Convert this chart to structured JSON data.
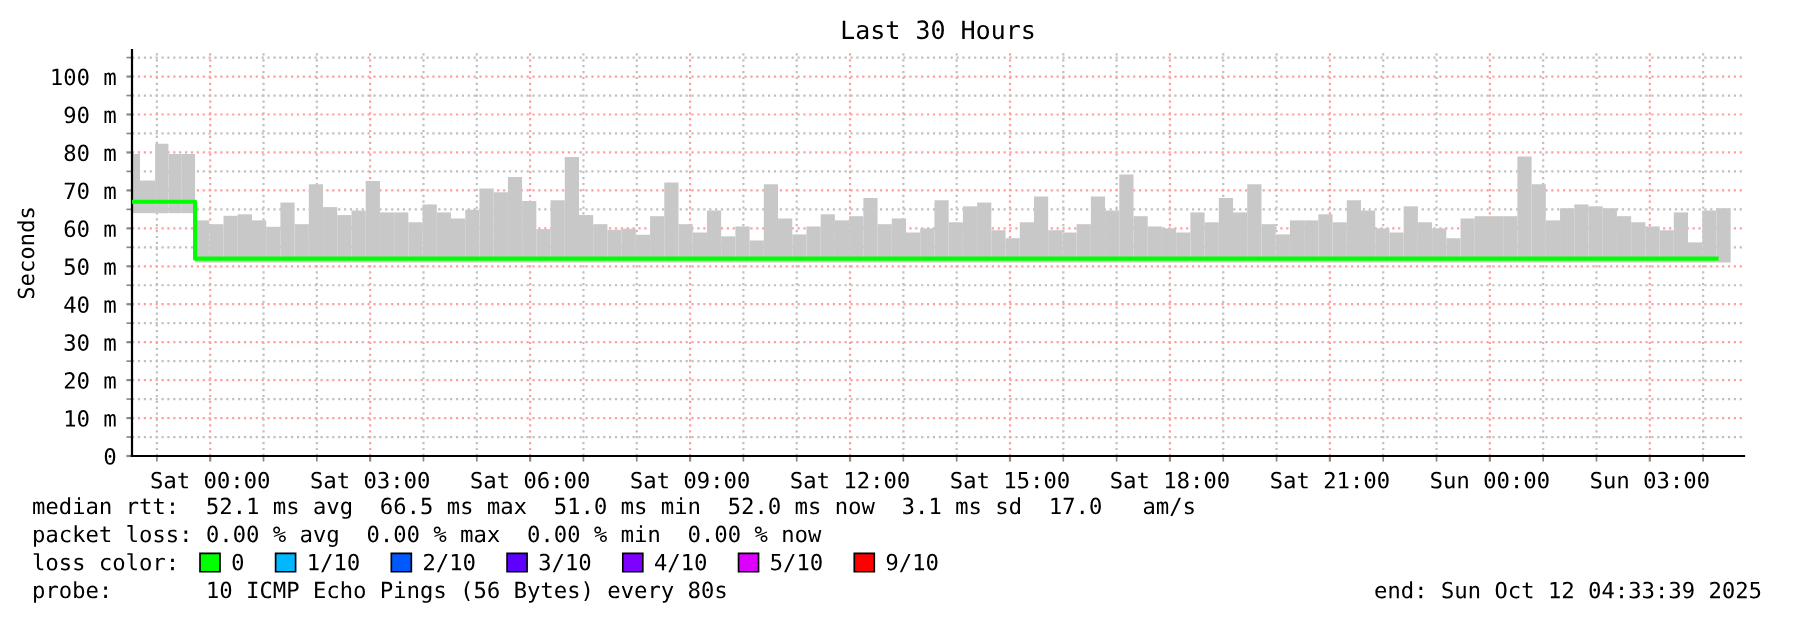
{
  "chart_data": {
    "type": "bar",
    "title": "Last 30 Hours",
    "ylabel": "Seconds",
    "x": [
      "2025-10-10T22:32",
      "2025-10-10T22:41",
      "2025-10-10T22:58",
      "2025-10-10T23:13",
      "2025-10-10T23:28",
      "2025-10-10T23:43",
      "2025-10-10T23:59",
      "2025-10-11T00:15",
      "2025-10-11T00:31",
      "2025-10-11T00:47",
      "2025-10-11T01:03",
      "2025-10-11T01:19",
      "2025-10-11T01:35",
      "2025-10-11T01:51",
      "2025-10-11T02:07",
      "2025-10-11T02:23",
      "2025-10-11T02:39",
      "2025-10-11T02:55",
      "2025-10-11T03:11",
      "2025-10-11T03:27",
      "2025-10-11T03:43",
      "2025-10-11T03:59",
      "2025-10-11T04:15",
      "2025-10-11T04:31",
      "2025-10-11T04:47",
      "2025-10-11T05:03",
      "2025-10-11T05:19",
      "2025-10-11T05:35",
      "2025-10-11T05:51",
      "2025-10-11T06:07",
      "2025-10-11T06:23",
      "2025-10-11T06:39",
      "2025-10-11T06:55",
      "2025-10-11T07:11",
      "2025-10-11T07:27",
      "2025-10-11T07:43",
      "2025-10-11T07:59",
      "2025-10-11T08:15",
      "2025-10-11T08:31",
      "2025-10-11T08:47",
      "2025-10-11T09:03",
      "2025-10-11T09:19",
      "2025-10-11T09:35",
      "2025-10-11T09:51",
      "2025-10-11T10:07",
      "2025-10-11T10:23",
      "2025-10-11T10:39",
      "2025-10-11T10:55",
      "2025-10-11T11:11",
      "2025-10-11T11:27",
      "2025-10-11T11:43",
      "2025-10-11T11:59",
      "2025-10-11T12:15",
      "2025-10-11T12:31",
      "2025-10-11T12:47",
      "2025-10-11T13:03",
      "2025-10-11T13:19",
      "2025-10-11T13:35",
      "2025-10-11T13:51",
      "2025-10-11T14:07",
      "2025-10-11T14:23",
      "2025-10-11T14:39",
      "2025-10-11T14:55",
      "2025-10-11T15:11",
      "2025-10-11T15:27",
      "2025-10-11T15:43",
      "2025-10-11T15:59",
      "2025-10-11T16:15",
      "2025-10-11T16:31",
      "2025-10-11T16:47",
      "2025-10-11T17:03",
      "2025-10-11T17:19",
      "2025-10-11T17:35",
      "2025-10-11T17:51",
      "2025-10-11T18:07",
      "2025-10-11T18:23",
      "2025-10-11T18:39",
      "2025-10-11T18:55",
      "2025-10-11T19:11",
      "2025-10-11T19:27",
      "2025-10-11T19:43",
      "2025-10-11T19:59",
      "2025-10-11T20:15",
      "2025-10-11T20:31",
      "2025-10-11T20:47",
      "2025-10-11T21:03",
      "2025-10-11T21:19",
      "2025-10-11T21:35",
      "2025-10-11T21:51",
      "2025-10-11T22:07",
      "2025-10-11T22:23",
      "2025-10-11T22:39",
      "2025-10-11T22:55",
      "2025-10-11T23:11",
      "2025-10-11T23:27",
      "2025-10-11T23:43",
      "2025-10-11T23:59",
      "2025-10-12T00:15",
      "2025-10-12T00:31",
      "2025-10-12T00:47",
      "2025-10-12T01:03",
      "2025-10-12T01:19",
      "2025-10-12T01:35",
      "2025-10-12T01:51",
      "2025-10-12T02:07",
      "2025-10-12T02:23",
      "2025-10-12T02:39",
      "2025-10-12T02:55",
      "2025-10-12T03:11",
      "2025-10-12T03:27",
      "2025-10-12T03:43",
      "2025-10-12T03:59",
      "2025-10-12T04:15"
    ],
    "series": [
      {
        "color": "#c8c8c8",
        "base": [
          64,
          64,
          64,
          64,
          64,
          51,
          51,
          51,
          51,
          51,
          51,
          51,
          51,
          51,
          51,
          51,
          51,
          51,
          51,
          51,
          51,
          51,
          51,
          51,
          51,
          51,
          51,
          51,
          51,
          51,
          51,
          51,
          51,
          51,
          51,
          51,
          51,
          51,
          51,
          51,
          51,
          51,
          51,
          51,
          51,
          51,
          51,
          51,
          51,
          51,
          51,
          51,
          51,
          51,
          51,
          51,
          51,
          51,
          51,
          51,
          51,
          51,
          51,
          51,
          51,
          51,
          51,
          51,
          51,
          51,
          51,
          51,
          51,
          51,
          51,
          51,
          51,
          51,
          51,
          51,
          51,
          51,
          51,
          51,
          51,
          51,
          51,
          51,
          51,
          51,
          51,
          51,
          51,
          51,
          51,
          51,
          51,
          51,
          51,
          51,
          51,
          51,
          51,
          51,
          51,
          51,
          51,
          51,
          51,
          51,
          51,
          51,
          51
        ],
        "values": [
          15.6,
          8.6,
          18.3,
          15.6,
          15.6,
          11.1,
          10.1,
          12.3,
          12.7,
          11.1,
          9.4,
          15.8,
          10.1,
          20.6,
          14.6,
          12.5,
          13.7,
          21.5,
          13.2,
          13.2,
          10.6,
          15.3,
          13.2,
          11.6,
          13.9,
          19.5,
          18.5,
          22.5,
          16.2,
          8.8,
          16.4,
          27.8,
          12.5,
          10.1,
          8.6,
          8.9,
          7.3,
          12.2,
          21.1,
          10.1,
          7.9,
          13.7,
          6.9,
          9.5,
          5.8,
          20.6,
          11.6,
          7.4,
          9.5,
          12.7,
          11.1,
          12.2,
          17.0,
          10.1,
          11.6,
          7.9,
          9.0,
          16.4,
          10.6,
          14.8,
          15.8,
          8.5,
          6.4,
          10.6,
          17.4,
          8.5,
          7.9,
          10.1,
          17.4,
          13.7,
          23.2,
          12.2,
          9.5,
          9.0,
          7.9,
          13.2,
          10.6,
          17.0,
          13.2,
          20.6,
          10.1,
          7.4,
          11.1,
          11.1,
          12.7,
          10.6,
          16.4,
          13.7,
          9.0,
          7.9,
          14.8,
          10.6,
          9.0,
          6.4,
          11.6,
          12.2,
          12.2,
          12.2,
          27.9,
          20.6,
          11.1,
          14.3,
          15.3,
          14.8,
          14.3,
          12.2,
          10.6,
          9.5,
          8.5,
          13.2,
          5.3,
          13.7,
          14.3
        ]
      },
      {
        "type": "step",
        "name": "0",
        "color": "#00ff00",
        "values": [
          67,
          67,
          67,
          67,
          67,
          52,
          52,
          52,
          52,
          52,
          52,
          52,
          52,
          52,
          52,
          52,
          52,
          52,
          52,
          52,
          52,
          52,
          52,
          52,
          52,
          52,
          52,
          52,
          52,
          52,
          52,
          52,
          52,
          52,
          52,
          52,
          52,
          52,
          52,
          52,
          52,
          52,
          52,
          52,
          52,
          52,
          52,
          52,
          52,
          52,
          52,
          52,
          52,
          52,
          52,
          52,
          52,
          52,
          52,
          52,
          52,
          52,
          52,
          52,
          52,
          52,
          52,
          52,
          52,
          52,
          52,
          52,
          52,
          52,
          52,
          52,
          52,
          52,
          52,
          52,
          52,
          52,
          52,
          52,
          52,
          52,
          52,
          52,
          52,
          52,
          52,
          52,
          52,
          52,
          52,
          52,
          52,
          52,
          52,
          52,
          52,
          52,
          52,
          52,
          52,
          52,
          52,
          52,
          52,
          52,
          52,
          52,
          52
        ]
      },
      {
        "type": "step",
        "name": "1/10",
        "color": "#00b8ff",
        "values": [
          null,
          null,
          null,
          null,
          null,
          null,
          null,
          null,
          null,
          null,
          null,
          null,
          null,
          null,
          null,
          null,
          null,
          null,
          null,
          null,
          null,
          null,
          null,
          null,
          null,
          null,
          null,
          null,
          null,
          null,
          null,
          null,
          null,
          null,
          null,
          null,
          null,
          null,
          null,
          null,
          null,
          null,
          null,
          null,
          null,
          null,
          null,
          null,
          null,
          null,
          null,
          null,
          null,
          null,
          null,
          null,
          null,
          null,
          null,
          null,
          null,
          null,
          null,
          null,
          null,
          null,
          null,
          null,
          null,
          null,
          null,
          null,
          null,
          null,
          null,
          null,
          null,
          null,
          null,
          null,
          null,
          null,
          null,
          null,
          null,
          null,
          null,
          null,
          null,
          null,
          null,
          null,
          null,
          null,
          null,
          null,
          null,
          null,
          null,
          null,
          null,
          null,
          null,
          null,
          null,
          null,
          null,
          null,
          null,
          null,
          null,
          null,
          null
        ]
      },
      {
        "type": "step",
        "name": "2/10",
        "color": "#0059ff",
        "values": [
          null,
          null,
          null,
          null,
          null,
          null,
          null,
          null,
          null,
          null,
          null,
          null,
          null,
          null,
          null,
          null,
          null,
          null,
          null,
          null,
          null,
          null,
          null,
          null,
          null,
          null,
          null,
          null,
          null,
          null,
          null,
          null,
          null,
          null,
          null,
          null,
          null,
          null,
          null,
          null,
          null,
          null,
          null,
          null,
          null,
          null,
          null,
          null,
          null,
          null,
          null,
          null,
          null,
          null,
          null,
          null,
          null,
          null,
          null,
          null,
          null,
          null,
          null,
          null,
          null,
          null,
          null,
          null,
          null,
          null,
          null,
          null,
          null,
          null,
          null,
          null,
          null,
          null,
          null,
          null,
          null,
          null,
          null,
          null,
          null,
          null,
          null,
          null,
          null,
          null,
          null,
          null,
          null,
          null,
          null,
          null,
          null,
          null,
          null,
          null,
          null,
          null,
          null,
          null,
          null,
          null,
          null,
          null,
          null,
          null,
          null,
          null,
          null
        ]
      },
      {
        "type": "step",
        "name": "3/10",
        "color": "#5e00ff",
        "values": [
          null,
          null,
          null,
          null,
          null,
          null,
          null,
          null,
          null,
          null,
          null,
          null,
          null,
          null,
          null,
          null,
          null,
          null,
          null,
          null,
          null,
          null,
          null,
          null,
          null,
          null,
          null,
          null,
          null,
          null,
          null,
          null,
          null,
          null,
          null,
          null,
          null,
          null,
          null,
          null,
          null,
          null,
          null,
          null,
          null,
          null,
          null,
          null,
          null,
          null,
          null,
          null,
          null,
          null,
          null,
          null,
          null,
          null,
          null,
          null,
          null,
          null,
          null,
          null,
          null,
          null,
          null,
          null,
          null,
          null,
          null,
          null,
          null,
          null,
          null,
          null,
          null,
          null,
          null,
          null,
          null,
          null,
          null,
          null,
          null,
          null,
          null,
          null,
          null,
          null,
          null,
          null,
          null,
          null,
          null,
          null,
          null,
          null,
          null,
          null,
          null,
          null,
          null,
          null,
          null,
          null,
          null,
          null,
          null,
          null,
          null,
          null,
          null
        ]
      },
      {
        "type": "step",
        "name": "4/10",
        "color": "#7e00ff",
        "values": [
          null,
          null,
          null,
          null,
          null,
          null,
          null,
          null,
          null,
          null,
          null,
          null,
          null,
          null,
          null,
          null,
          null,
          null,
          null,
          null,
          null,
          null,
          null,
          null,
          null,
          null,
          null,
          null,
          null,
          null,
          null,
          null,
          null,
          null,
          null,
          null,
          null,
          null,
          null,
          null,
          null,
          null,
          null,
          null,
          null,
          null,
          null,
          null,
          null,
          null,
          null,
          null,
          null,
          null,
          null,
          null,
          null,
          null,
          null,
          null,
          null,
          null,
          null,
          null,
          null,
          null,
          null,
          null,
          null,
          null,
          null,
          null,
          null,
          null,
          null,
          null,
          null,
          null,
          null,
          null,
          null,
          null,
          null,
          null,
          null,
          null,
          null,
          null,
          null,
          null,
          null,
          null,
          null,
          null,
          null,
          null,
          null,
          null,
          null,
          null,
          null,
          null,
          null,
          null,
          null,
          null,
          null,
          null,
          null,
          null,
          null,
          null,
          null
        ]
      },
      {
        "type": "step",
        "name": "5/10",
        "color": "#dd00ff",
        "values": [
          null,
          null,
          null,
          null,
          null,
          null,
          null,
          null,
          null,
          null,
          null,
          null,
          null,
          null,
          null,
          null,
          null,
          null,
          null,
          null,
          null,
          null,
          null,
          null,
          null,
          null,
          null,
          null,
          null,
          null,
          null,
          null,
          null,
          null,
          null,
          null,
          null,
          null,
          null,
          null,
          null,
          null,
          null,
          null,
          null,
          null,
          null,
          null,
          null,
          null,
          null,
          null,
          null,
          null,
          null,
          null,
          null,
          null,
          null,
          null,
          null,
          null,
          null,
          null,
          null,
          null,
          null,
          null,
          null,
          null,
          null,
          null,
          null,
          null,
          null,
          null,
          null,
          null,
          null,
          null,
          null,
          null,
          null,
          null,
          null,
          null,
          null,
          null,
          null,
          null,
          null,
          null,
          null,
          null,
          null,
          null,
          null,
          null,
          null,
          null,
          null,
          null,
          null,
          null,
          null,
          null,
          null,
          null,
          null,
          null,
          null,
          null,
          null
        ]
      },
      {
        "type": "step",
        "name": "9/10",
        "color": "#ff0000",
        "values": [
          null,
          null,
          null,
          null,
          null,
          null,
          null,
          null,
          null,
          null,
          null,
          null,
          null,
          null,
          null,
          null,
          null,
          null,
          null,
          null,
          null,
          null,
          null,
          null,
          null,
          null,
          null,
          null,
          null,
          null,
          null,
          null,
          null,
          null,
          null,
          null,
          null,
          null,
          null,
          null,
          null,
          null,
          null,
          null,
          null,
          null,
          null,
          null,
          null,
          null,
          null,
          null,
          null,
          null,
          null,
          null,
          null,
          null,
          null,
          null,
          null,
          null,
          null,
          null,
          null,
          null,
          null,
          null,
          null,
          null,
          null,
          null,
          null,
          null,
          null,
          null,
          null,
          null,
          null,
          null,
          null,
          null,
          null,
          null,
          null,
          null,
          null,
          null,
          null,
          null,
          null,
          null,
          null,
          null,
          null,
          null,
          null,
          null,
          null,
          null,
          null,
          null,
          null,
          null,
          null,
          null,
          null,
          null,
          null,
          null,
          null,
          null,
          null
        ]
      }
    ],
    "legend": "bottom",
    "legend_title": "loss color:",
    "xlim": [
      "2025-10-10T22:32",
      "2025-10-12T04:46"
    ],
    "ylim": [
      0,
      107
    ],
    "xticks": [
      {
        "value": "2025-10-11T00:00",
        "label": "Sat 00:00"
      },
      {
        "value": "2025-10-11T03:00",
        "label": "Sat 03:00"
      },
      {
        "value": "2025-10-11T06:00",
        "label": "Sat 06:00"
      },
      {
        "value": "2025-10-11T09:00",
        "label": "Sat 09:00"
      },
      {
        "value": "2025-10-11T12:00",
        "label": "Sat 12:00"
      },
      {
        "value": "2025-10-11T15:00",
        "label": "Sat 15:00"
      },
      {
        "value": "2025-10-11T18:00",
        "label": "Sat 18:00"
      },
      {
        "value": "2025-10-11T21:00",
        "label": "Sat 21:00"
      },
      {
        "value": "2025-10-12T00:00",
        "label": "Sun 00:00"
      },
      {
        "value": "2025-10-12T03:00",
        "label": "Sun 03:00"
      }
    ],
    "yticks": [
      0,
      {
        "value": 10,
        "label": "10 m"
      },
      {
        "value": 20,
        "label": "20 m"
      },
      {
        "value": 30,
        "label": "30 m"
      },
      {
        "value": 40,
        "label": "40 m"
      },
      {
        "value": 50,
        "label": "50 m"
      },
      {
        "value": 60,
        "label": "60 m"
      },
      {
        "value": 70,
        "label": "70 m"
      },
      {
        "value": 80,
        "label": "80 m"
      },
      {
        "value": 90,
        "label": "90 m"
      },
      {
        "value": 100,
        "label": "100 m"
      }
    ],
    "grid": true,
    "annotations": [
      "median rtt:  52.1 ms avg  66.5 ms max  51.0 ms min  52.0 ms now  3.1 ms sd  17.0   am/s",
      "packet loss: 0.00 % avg  0.00 % max  0.00 % min  0.00 % now",
      "probe:       10 ICMP Echo Pings (56 Bytes) every 80s",
      "end: Sun Oct 12 04:33:39 2025"
    ]
  }
}
